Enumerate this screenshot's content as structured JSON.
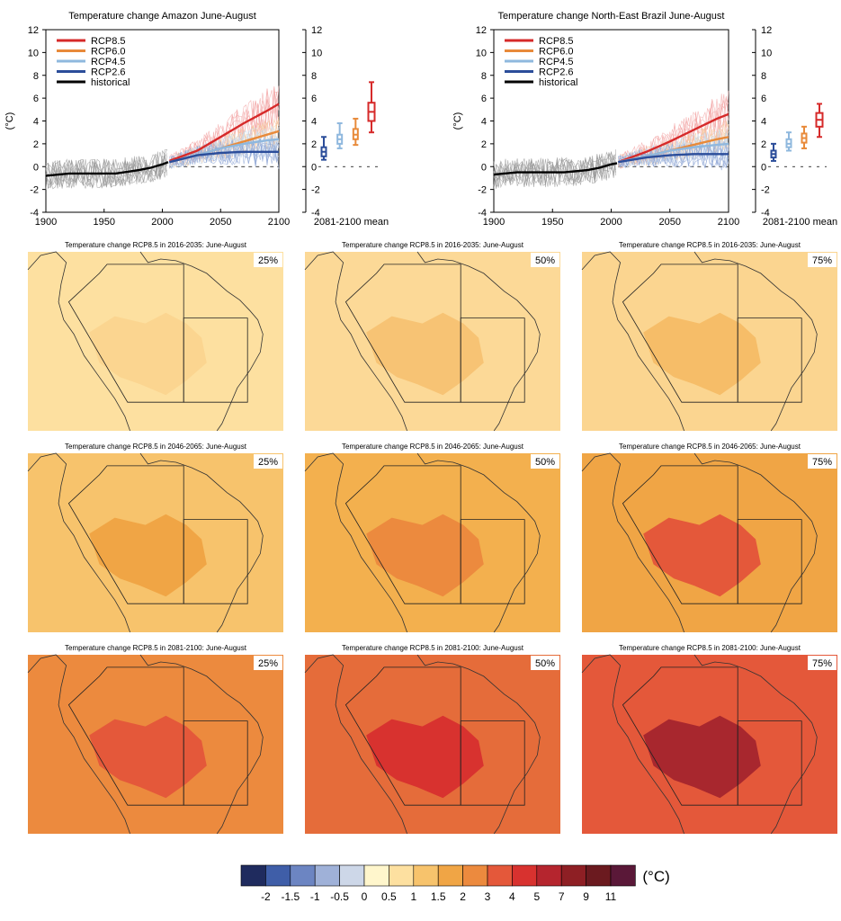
{
  "chart_data": [
    {
      "type": "line",
      "title": "Temperature change Amazon June-August",
      "ylabel": "(°C)",
      "xlim": [
        1900,
        2100
      ],
      "ylim": [
        -4,
        12
      ],
      "xticks": [
        "1900",
        "1950",
        "2000",
        "2050",
        "2100"
      ],
      "yticks": [
        "-4",
        "-2",
        "0",
        "2",
        "4",
        "6",
        "8",
        "10",
        "12"
      ],
      "box_label": "2081-2100 mean",
      "legend_position": "top-left",
      "series": [
        {
          "name": "RCP8.5",
          "color": "#d62a2a",
          "x": [
            2006,
            2030,
            2050,
            2070,
            2090,
            2100
          ],
          "y": [
            0.5,
            1.4,
            2.6,
            3.8,
            4.9,
            5.5
          ]
        },
        {
          "name": "RCP6.0",
          "color": "#e88a3a",
          "x": [
            2006,
            2030,
            2050,
            2070,
            2090,
            2100
          ],
          "y": [
            0.4,
            1.0,
            1.6,
            2.2,
            2.8,
            3.1
          ]
        },
        {
          "name": "RCP4.5",
          "color": "#8fb8de",
          "x": [
            2006,
            2030,
            2050,
            2070,
            2090,
            2100
          ],
          "y": [
            0.4,
            1.0,
            1.6,
            2.0,
            2.3,
            2.4
          ]
        },
        {
          "name": "RCP2.6",
          "color": "#2b4d9a",
          "x": [
            2006,
            2030,
            2050,
            2070,
            2090,
            2100
          ],
          "y": [
            0.4,
            1.0,
            1.2,
            1.3,
            1.3,
            1.3
          ]
        },
        {
          "name": "historical",
          "color": "#000000",
          "x": [
            1900,
            1920,
            1940,
            1960,
            1980,
            1990,
            2000,
            2005
          ],
          "y": [
            -0.8,
            -0.6,
            -0.6,
            -0.6,
            -0.3,
            -0.1,
            0.2,
            0.4
          ]
        }
      ],
      "boxes": [
        {
          "scenario": "RCP2.6",
          "color": "#2b4d9a",
          "min": 0.6,
          "q1": 0.9,
          "median": 1.3,
          "q3": 1.7,
          "max": 2.6
        },
        {
          "scenario": "RCP4.5",
          "color": "#8fb8de",
          "min": 1.6,
          "q1": 2.0,
          "median": 2.4,
          "q3": 2.8,
          "max": 3.8
        },
        {
          "scenario": "RCP6.0",
          "color": "#e88a3a",
          "min": 1.9,
          "q1": 2.4,
          "median": 2.8,
          "q3": 3.3,
          "max": 4.2
        },
        {
          "scenario": "RCP8.5",
          "color": "#d62a2a",
          "min": 3.0,
          "q1": 4.0,
          "median": 4.8,
          "q3": 5.6,
          "max": 7.4
        }
      ]
    },
    {
      "type": "line",
      "title": "Temperature change North-East Brazil June-August",
      "ylabel": "(°C)",
      "xlim": [
        1900,
        2100
      ],
      "ylim": [
        -4,
        12
      ],
      "xticks": [
        "1900",
        "1950",
        "2000",
        "2050",
        "2100"
      ],
      "yticks": [
        "-4",
        "-2",
        "0",
        "2",
        "4",
        "6",
        "8",
        "10",
        "12"
      ],
      "box_label": "2081-2100 mean",
      "legend_position": "top-left",
      "series": [
        {
          "name": "RCP8.5",
          "color": "#d62a2a",
          "x": [
            2006,
            2030,
            2050,
            2070,
            2090,
            2100
          ],
          "y": [
            0.4,
            1.3,
            2.2,
            3.2,
            4.2,
            4.6
          ]
        },
        {
          "name": "RCP6.0",
          "color": "#e88a3a",
          "x": [
            2006,
            2030,
            2050,
            2070,
            2090,
            2100
          ],
          "y": [
            0.4,
            0.9,
            1.4,
            1.9,
            2.4,
            2.6
          ]
        },
        {
          "name": "RCP4.5",
          "color": "#8fb8de",
          "x": [
            2006,
            2030,
            2050,
            2070,
            2090,
            2100
          ],
          "y": [
            0.4,
            0.9,
            1.4,
            1.7,
            1.9,
            2.0
          ]
        },
        {
          "name": "RCP2.6",
          "color": "#2b4d9a",
          "x": [
            2006,
            2030,
            2050,
            2070,
            2090,
            2100
          ],
          "y": [
            0.4,
            0.8,
            1.0,
            1.1,
            1.1,
            1.1
          ]
        },
        {
          "name": "historical",
          "color": "#000000",
          "x": [
            1900,
            1920,
            1940,
            1960,
            1980,
            1990,
            2000,
            2005
          ],
          "y": [
            -0.7,
            -0.5,
            -0.5,
            -0.5,
            -0.3,
            -0.1,
            0.2,
            0.3
          ]
        }
      ],
      "boxes": [
        {
          "scenario": "RCP2.6",
          "color": "#2b4d9a",
          "min": 0.5,
          "q1": 0.8,
          "median": 1.1,
          "q3": 1.4,
          "max": 2.0
        },
        {
          "scenario": "RCP4.5",
          "color": "#8fb8de",
          "min": 1.4,
          "q1": 1.7,
          "median": 2.0,
          "q3": 2.4,
          "max": 3.0
        },
        {
          "scenario": "RCP6.0",
          "color": "#e88a3a",
          "min": 1.6,
          "q1": 2.1,
          "median": 2.5,
          "q3": 2.9,
          "max": 3.5
        },
        {
          "scenario": "RCP8.5",
          "color": "#d62a2a",
          "min": 2.6,
          "q1": 3.5,
          "median": 4.1,
          "q3": 4.7,
          "max": 5.5
        }
      ]
    },
    {
      "type": "heatmap",
      "unit": "(°C)",
      "maps": [
        {
          "title": "Temperature change RCP8.5 in 2016-2035: June-August",
          "percentile": "25%",
          "background": "#fde0a0",
          "core": "#fbd590",
          "core_level": "0.5-1"
        },
        {
          "title": "Temperature change RCP8.5 in 2016-2035: June-August",
          "percentile": "50%",
          "background": "#fcd997",
          "core": "#f7c374",
          "core_level": "1-1.5"
        },
        {
          "title": "Temperature change RCP8.5 in 2016-2035: June-August",
          "percentile": "75%",
          "background": "#fbd590",
          "core": "#f6bd68",
          "core_level": "1-1.5"
        },
        {
          "title": "Temperature change RCP8.5 in 2046-2065: June-August",
          "percentile": "25%",
          "background": "#f7c36c",
          "core": "#f0a545",
          "core_level": "1.5-2"
        },
        {
          "title": "Temperature change RCP8.5 in 2046-2065: June-August",
          "percentile": "50%",
          "background": "#f3b04e",
          "core": "#ec8a3e",
          "core_level": "2-3"
        },
        {
          "title": "Temperature change RCP8.5 in 2046-2065: June-August",
          "percentile": "75%",
          "background": "#f0a545",
          "core": "#e4583a",
          "core_level": "3-4"
        },
        {
          "title": "Temperature change RCP8.5 in 2081-2100: June-August",
          "percentile": "25%",
          "background": "#ec8a3e",
          "core": "#e4583a",
          "core_level": "3-4"
        },
        {
          "title": "Temperature change RCP8.5 in 2081-2100: June-August",
          "percentile": "50%",
          "background": "#e56c3a",
          "core": "#d8322f",
          "core_level": "4-5"
        },
        {
          "title": "Temperature change RCP8.5 in 2081-2100: June-August",
          "percentile": "75%",
          "background": "#e4583a",
          "core": "#a8272e",
          "core_level": "5-7"
        }
      ],
      "colorbar": {
        "colors": [
          "#1f2b5e",
          "#3f5ea8",
          "#6c85c2",
          "#9fb1d8",
          "#cdd7e8",
          "#fff6cc",
          "#fde0a0",
          "#f7c36c",
          "#f0a545",
          "#ec8a3e",
          "#e4583a",
          "#d8322f",
          "#b5252e",
          "#8e1f24",
          "#6b1a1f",
          "#5a1838"
        ],
        "labels": [
          "-2",
          "-1.5",
          "-1",
          "-0.5",
          "0",
          "0.5",
          "1",
          "1.5",
          "2",
          "3",
          "4",
          "5",
          "7",
          "9",
          "11"
        ]
      }
    }
  ]
}
